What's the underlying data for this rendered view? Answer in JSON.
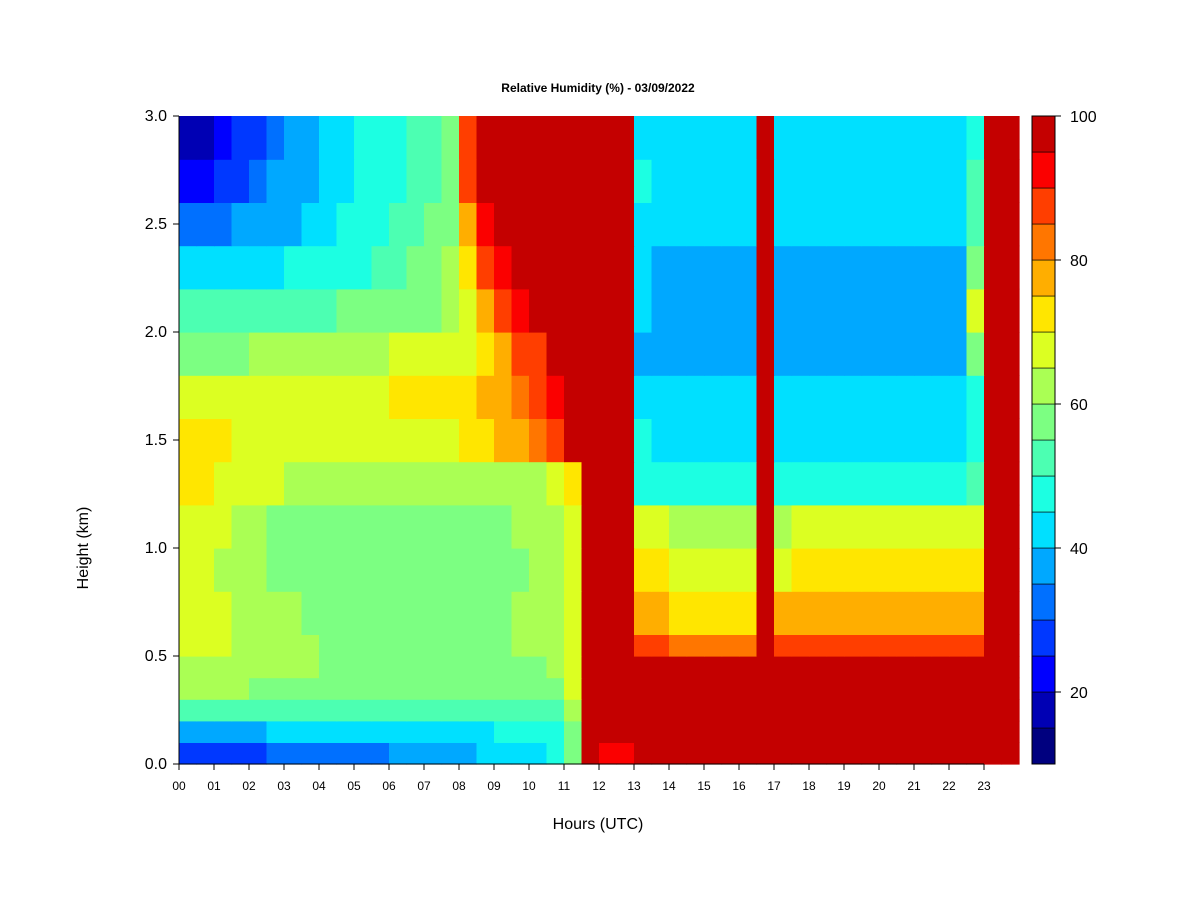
{
  "chart_data": {
    "type": "heatmap",
    "title": "Relative Humidity (%) - 03/09/2022",
    "xlabel": "Hours (UTC)",
    "ylabel": "Height (km)",
    "x_ticks": [
      "00",
      "01",
      "02",
      "03",
      "04",
      "05",
      "06",
      "07",
      "08",
      "09",
      "10",
      "11",
      "12",
      "13",
      "14",
      "15",
      "16",
      "17",
      "18",
      "19",
      "20",
      "21",
      "22",
      "23"
    ],
    "y_ticks": [
      "0.0",
      "0.5",
      "1.0",
      "1.5",
      "2.0",
      "2.5",
      "3.0"
    ],
    "xlim": [
      0,
      24
    ],
    "ylim": [
      0,
      3.0
    ],
    "colorbar": {
      "range": [
        10,
        100
      ],
      "levels": [
        10,
        15,
        20,
        25,
        30,
        35,
        40,
        45,
        50,
        55,
        60,
        65,
        70,
        75,
        80,
        85,
        90,
        95,
        100
      ],
      "tick_labels": [
        "20",
        "40",
        "60",
        "80",
        "100"
      ],
      "tick_values": [
        20,
        40,
        60,
        80,
        100
      ],
      "colors": [
        "#00007f",
        "#0000b4",
        "#0000ff",
        "#0038ff",
        "#0070ff",
        "#00a8ff",
        "#00e0ff",
        "#1cffe2",
        "#4cffb2",
        "#7cff82",
        "#aaff54",
        "#dcff22",
        "#ffe600",
        "#ffae00",
        "#ff7600",
        "#ff3e00",
        "#fb0000",
        "#c40000",
        "#800000"
      ]
    },
    "hours": [
      0,
      0.5,
      1,
      1.5,
      2,
      2.5,
      3,
      3.5,
      4,
      4.5,
      5,
      5.5,
      6,
      6.5,
      7,
      7.5,
      8,
      8.5,
      9,
      9.5,
      10,
      10.5,
      11,
      11.5,
      12,
      12.5,
      13,
      13.5,
      14,
      14.5,
      15,
      15.5,
      16,
      16.5,
      17,
      17.5,
      18,
      18.5,
      19,
      19.5,
      20,
      20.5,
      21,
      21.5,
      22,
      22.5,
      23,
      23.5
    ],
    "heights_km": [
      0.0,
      0.1,
      0.2,
      0.3,
      0.4,
      0.5,
      0.6,
      0.8,
      1.0,
      1.2,
      1.4,
      1.6,
      1.8,
      2.0,
      2.2,
      2.4,
      2.6,
      2.8,
      3.0
    ],
    "rh_percent": [
      [
        28,
        28,
        30,
        30,
        30,
        32,
        35,
        35,
        35,
        35,
        35,
        35,
        38,
        38,
        38,
        40,
        40,
        42,
        45,
        45,
        45,
        50,
        60,
        100,
        95,
        95,
        100,
        100,
        100,
        100,
        100,
        100,
        100,
        100,
        100,
        100,
        100,
        100,
        100,
        100,
        100,
        100,
        100,
        100,
        100,
        100,
        100,
        100
      ],
      [
        40,
        40,
        40,
        40,
        40,
        42,
        42,
        42,
        42,
        42,
        42,
        42,
        45,
        45,
        45,
        45,
        45,
        45,
        48,
        48,
        48,
        50,
        60,
        100,
        100,
        100,
        100,
        100,
        100,
        100,
        100,
        100,
        100,
        100,
        100,
        100,
        100,
        100,
        100,
        100,
        100,
        100,
        100,
        100,
        100,
        100,
        100,
        100
      ],
      [
        55,
        55,
        55,
        55,
        55,
        55,
        55,
        55,
        55,
        55,
        55,
        55,
        55,
        55,
        55,
        55,
        55,
        55,
        55,
        55,
        55,
        55,
        65,
        100,
        100,
        100,
        100,
        100,
        100,
        100,
        100,
        100,
        100,
        100,
        100,
        100,
        100,
        100,
        100,
        100,
        100,
        100,
        100,
        100,
        100,
        100,
        100,
        100
      ],
      [
        62,
        62,
        62,
        62,
        60,
        60,
        60,
        60,
        58,
        58,
        58,
        58,
        58,
        58,
        58,
        58,
        58,
        58,
        58,
        58,
        58,
        60,
        68,
        100,
        100,
        100,
        100,
        100,
        100,
        100,
        100,
        100,
        100,
        100,
        100,
        100,
        100,
        100,
        100,
        100,
        100,
        100,
        100,
        100,
        100,
        100,
        100,
        100
      ],
      [
        65,
        65,
        65,
        65,
        62,
        62,
        62,
        62,
        60,
        60,
        58,
        58,
        58,
        58,
        58,
        58,
        60,
        60,
        60,
        60,
        60,
        62,
        70,
        100,
        100,
        100,
        100,
        100,
        100,
        100,
        100,
        100,
        100,
        100,
        100,
        100,
        100,
        100,
        100,
        100,
        100,
        100,
        100,
        100,
        100,
        100,
        100,
        100
      ],
      [
        66,
        66,
        66,
        65,
        64,
        64,
        62,
        62,
        60,
        60,
        58,
        58,
        58,
        58,
        58,
        58,
        60,
        60,
        60,
        62,
        62,
        62,
        70,
        100,
        100,
        100,
        88,
        90,
        85,
        85,
        85,
        85,
        85,
        100,
        88,
        88,
        88,
        88,
        88,
        88,
        88,
        88,
        88,
        88,
        88,
        88,
        100,
        100
      ],
      [
        66,
        66,
        66,
        65,
        64,
        62,
        62,
        60,
        58,
        58,
        58,
        58,
        56,
        56,
        58,
        58,
        58,
        60,
        60,
        62,
        62,
        62,
        68,
        100,
        100,
        100,
        80,
        78,
        75,
        75,
        75,
        75,
        75,
        100,
        78,
        78,
        78,
        78,
        78,
        78,
        78,
        78,
        78,
        78,
        78,
        78,
        100,
        100
      ],
      [
        66,
        66,
        64,
        64,
        62,
        60,
        60,
        58,
        58,
        56,
        56,
        56,
        56,
        56,
        56,
        56,
        58,
        58,
        60,
        60,
        62,
        62,
        66,
        100,
        100,
        100,
        75,
        72,
        70,
        70,
        70,
        70,
        70,
        100,
        70,
        72,
        72,
        72,
        72,
        72,
        72,
        72,
        72,
        72,
        72,
        75,
        100,
        100
      ],
      [
        68,
        68,
        66,
        64,
        62,
        60,
        60,
        58,
        58,
        58,
        56,
        56,
        58,
        58,
        58,
        58,
        58,
        60,
        60,
        62,
        62,
        62,
        66,
        100,
        100,
        100,
        68,
        66,
        65,
        65,
        65,
        65,
        65,
        100,
        65,
        66,
        66,
        66,
        66,
        66,
        66,
        66,
        66,
        66,
        66,
        70,
        100,
        100
      ],
      [
        72,
        72,
        70,
        68,
        66,
        66,
        65,
        64,
        64,
        64,
        64,
        64,
        64,
        64,
        64,
        64,
        64,
        64,
        64,
        64,
        64,
        66,
        72,
        100,
        100,
        100,
        50,
        48,
        48,
        48,
        48,
        48,
        48,
        100,
        48,
        48,
        48,
        48,
        48,
        48,
        48,
        48,
        48,
        48,
        48,
        55,
        100,
        100
      ],
      [
        72,
        72,
        72,
        70,
        70,
        70,
        70,
        70,
        70,
        70,
        70,
        70,
        70,
        70,
        70,
        70,
        72,
        72,
        76,
        78,
        82,
        88,
        100,
        100,
        100,
        100,
        46,
        44,
        44,
        44,
        44,
        44,
        44,
        100,
        44,
        44,
        44,
        44,
        44,
        44,
        44,
        44,
        44,
        44,
        44,
        50,
        100,
        100
      ],
      [
        68,
        68,
        68,
        68,
        68,
        68,
        68,
        70,
        70,
        70,
        70,
        70,
        72,
        72,
        72,
        72,
        74,
        76,
        80,
        84,
        88,
        94,
        100,
        100,
        100,
        100,
        44,
        42,
        42,
        42,
        42,
        42,
        42,
        100,
        42,
        42,
        42,
        42,
        42,
        42,
        42,
        42,
        42,
        42,
        42,
        50,
        100,
        100
      ],
      [
        60,
        60,
        60,
        60,
        62,
        62,
        62,
        64,
        64,
        64,
        64,
        64,
        66,
        66,
        66,
        66,
        70,
        74,
        80,
        86,
        90,
        96,
        100,
        100,
        100,
        100,
        40,
        38,
        38,
        38,
        38,
        38,
        38,
        100,
        38,
        38,
        38,
        38,
        38,
        38,
        38,
        38,
        38,
        38,
        38,
        60,
        100,
        100
      ],
      [
        55,
        55,
        52,
        52,
        52,
        52,
        54,
        54,
        54,
        56,
        56,
        56,
        58,
        58,
        60,
        62,
        70,
        78,
        86,
        92,
        96,
        100,
        100,
        100,
        100,
        100,
        42,
        40,
        40,
        40,
        40,
        40,
        40,
        100,
        40,
        40,
        40,
        40,
        40,
        40,
        40,
        40,
        40,
        40,
        40,
        70,
        100,
        100
      ],
      [
        45,
        45,
        44,
        44,
        44,
        44,
        46,
        46,
        48,
        48,
        50,
        52,
        54,
        56,
        58,
        62,
        74,
        86,
        94,
        100,
        100,
        100,
        100,
        100,
        100,
        100,
        42,
        40,
        40,
        40,
        40,
        40,
        40,
        100,
        40,
        40,
        40,
        40,
        40,
        40,
        40,
        40,
        40,
        40,
        40,
        60,
        100,
        100
      ],
      [
        35,
        35,
        35,
        36,
        38,
        40,
        40,
        42,
        44,
        46,
        48,
        50,
        52,
        54,
        56,
        60,
        80,
        92,
        100,
        100,
        100,
        100,
        100,
        100,
        100,
        100,
        44,
        42,
        42,
        42,
        42,
        42,
        42,
        100,
        42,
        42,
        42,
        42,
        42,
        42,
        42,
        42,
        42,
        42,
        42,
        55,
        100,
        100
      ],
      [
        25,
        25,
        28,
        30,
        32,
        36,
        38,
        40,
        42,
        44,
        46,
        48,
        50,
        52,
        54,
        60,
        86,
        100,
        100,
        100,
        100,
        100,
        100,
        100,
        100,
        100,
        46,
        44,
        44,
        44,
        44,
        44,
        44,
        100,
        44,
        44,
        44,
        44,
        44,
        44,
        44,
        44,
        44,
        44,
        44,
        55,
        100,
        100
      ],
      [
        20,
        20,
        22,
        26,
        30,
        34,
        38,
        40,
        42,
        44,
        46,
        48,
        50,
        52,
        54,
        60,
        90,
        100,
        100,
        100,
        100,
        100,
        100,
        100,
        100,
        100,
        44,
        44,
        44,
        44,
        44,
        44,
        44,
        100,
        44,
        44,
        44,
        44,
        44,
        44,
        44,
        44,
        44,
        44,
        44,
        50,
        100,
        100
      ],
      [
        18,
        18,
        20,
        24,
        30,
        34,
        38,
        40,
        42,
        44,
        46,
        48,
        50,
        52,
        54,
        60,
        92,
        100,
        100,
        100,
        100,
        100,
        100,
        100,
        100,
        100,
        44,
        44,
        44,
        44,
        44,
        44,
        44,
        100,
        44,
        44,
        44,
        44,
        44,
        44,
        44,
        44,
        44,
        44,
        44,
        50,
        100,
        100
      ]
    ]
  }
}
